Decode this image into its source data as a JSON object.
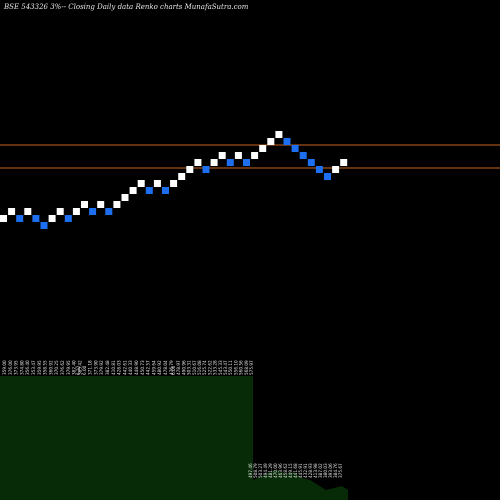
{
  "chart_data": {
    "type": "renko",
    "title": "BSE 543326  3%-- Closing Daily data  Renko  charts MunafaSutra.com",
    "colors": {
      "background": "#000000",
      "up_brick": "#ffffff",
      "down_brick": "#1e6ff0",
      "reference_lines": "#c8641e",
      "volume_fill": "#062b06"
    },
    "bricks": [
      {
        "dir": "up"
      },
      {
        "dir": "up"
      },
      {
        "dir": "down"
      },
      {
        "dir": "up"
      },
      {
        "dir": "down"
      },
      {
        "dir": "down"
      },
      {
        "dir": "up"
      },
      {
        "dir": "up"
      },
      {
        "dir": "down"
      },
      {
        "dir": "up"
      },
      {
        "dir": "up"
      },
      {
        "dir": "down"
      },
      {
        "dir": "up"
      },
      {
        "dir": "down"
      },
      {
        "dir": "up"
      },
      {
        "dir": "up"
      },
      {
        "dir": "up"
      },
      {
        "dir": "up"
      },
      {
        "dir": "down"
      },
      {
        "dir": "up"
      },
      {
        "dir": "down"
      },
      {
        "dir": "up"
      },
      {
        "dir": "up"
      },
      {
        "dir": "up"
      },
      {
        "dir": "up"
      },
      {
        "dir": "down"
      },
      {
        "dir": "up"
      },
      {
        "dir": "up"
      },
      {
        "dir": "down"
      },
      {
        "dir": "up"
      },
      {
        "dir": "down"
      },
      {
        "dir": "up"
      },
      {
        "dir": "up"
      },
      {
        "dir": "up"
      },
      {
        "dir": "up"
      },
      {
        "dir": "down"
      },
      {
        "dir": "down"
      },
      {
        "dir": "down"
      },
      {
        "dir": "down"
      },
      {
        "dir": "down"
      },
      {
        "dir": "down"
      },
      {
        "dir": "up"
      },
      {
        "dir": "up"
      }
    ],
    "reference_lines": [
      "upper",
      "lower"
    ],
    "volume_labels_left": [
      "359.00",
      "376.00",
      "373.95",
      "374.80",
      "356.40",
      "353.47",
      "359.95",
      "358.55",
      "360.92",
      "370.25",
      "376.62",
      "379.95",
      "382.40",
      "385.42"
    ],
    "volume_labels_middle": [
      "6.32",
      "6.00",
      "371.18",
      "373.90",
      "379.92",
      "382.48",
      "410.81",
      "428.03",
      "442.61",
      "440.33",
      "448.90",
      "450.73",
      "442.57",
      "459.64",
      "480.92",
      "478.04",
      "476.79"
    ],
    "volume_labels_right": [
      "6.06",
      "478.97",
      "490.96",
      "503.31",
      "510.67",
      "516.08",
      "525.74",
      "522.62",
      "533.28",
      "545.33",
      "543.47",
      "550.11",
      "556.10",
      "560.56",
      "568.09",
      "575.97"
    ],
    "tail_labels": [
      "497.46",
      "508.79",
      "503.27",
      "494.49",
      "481.29",
      "470.00",
      "463.96",
      "458.62",
      "449.15",
      "441.68",
      "445.91",
      "432.91",
      "428.93",
      "413.98",
      "387.02",
      "380.03",
      "393.06",
      "384.76",
      "375.67"
    ]
  }
}
